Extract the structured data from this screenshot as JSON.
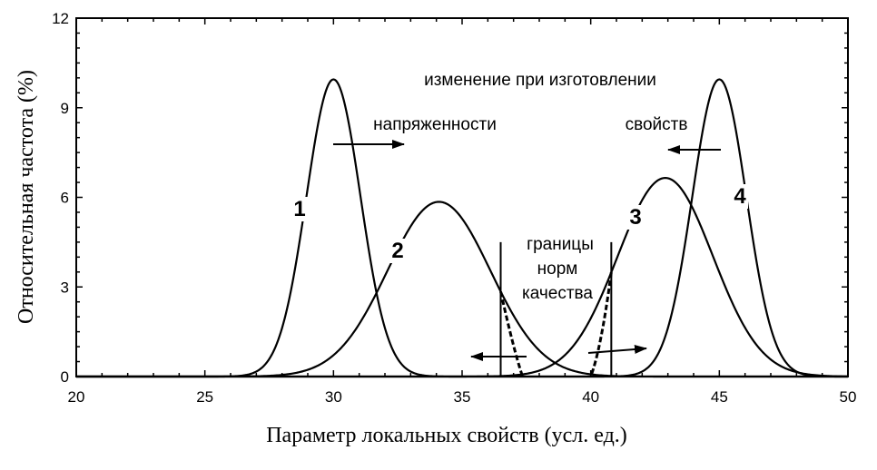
{
  "chart_data": {
    "type": "line",
    "xlabel": "Параметр локальных свойств (усл. ед.)",
    "ylabel": "Относительная частота (%)",
    "xlim": [
      20,
      50
    ],
    "ylim": [
      0,
      12
    ],
    "xticks": [
      "20",
      "25",
      "30",
      "35",
      "40",
      "45",
      "50"
    ],
    "yticks": [
      "0",
      "3",
      "6",
      "9",
      "12"
    ],
    "grid": false,
    "series": [
      {
        "name": "1",
        "mean": 30.0,
        "peak": 9.95,
        "sd": 1.05
      },
      {
        "name": "2",
        "mean": 34.1,
        "peak": 5.85,
        "sd": 2.0
      },
      {
        "name": "3",
        "mean": 42.9,
        "peak": 6.65,
        "sd": 1.85
      },
      {
        "name": "4",
        "mean": 45.0,
        "peak": 9.95,
        "sd": 1.05
      }
    ],
    "quality_limits": [
      36.5,
      40.8
    ],
    "annotations": {
      "top": "изменение при изготовлении",
      "left_arrow_text": "напряженности",
      "right_arrow_text": "свойств",
      "limits_line1": "границы",
      "limits_line2": "норм",
      "limits_line3": "качества"
    }
  }
}
